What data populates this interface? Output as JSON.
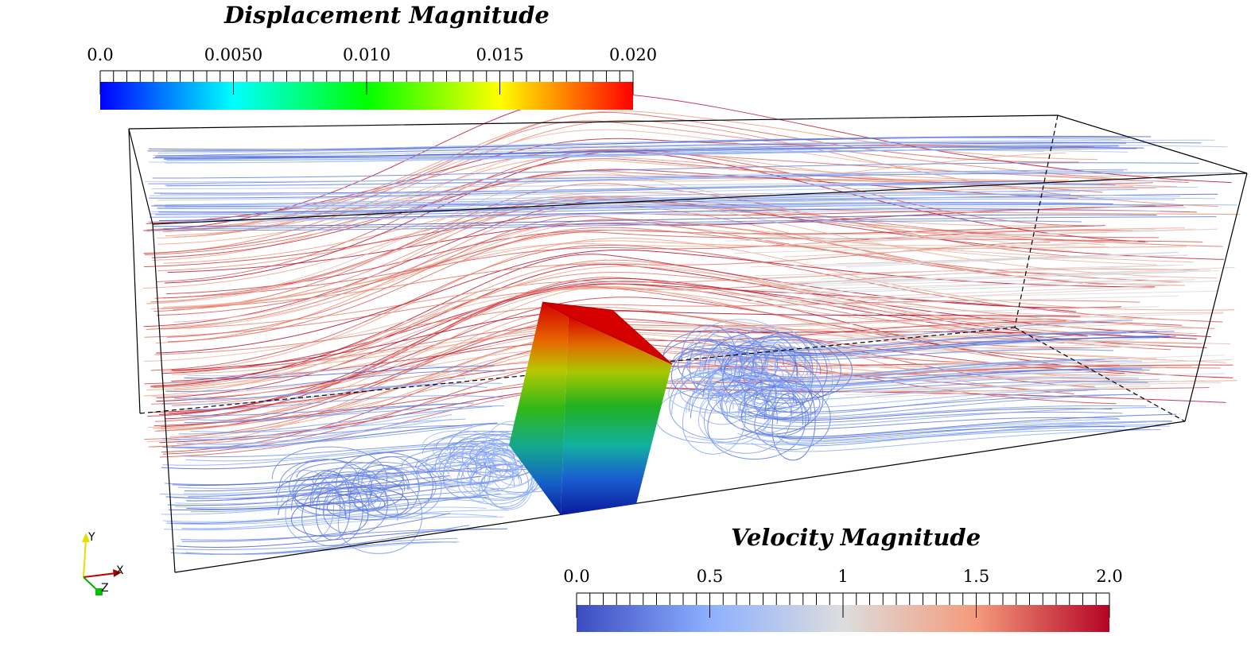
{
  "displacement_bar": {
    "title": "Displacement Magnitude",
    "range": [
      0.0,
      0.02
    ],
    "ticks": [
      {
        "value": 0.0,
        "label": "0.0"
      },
      {
        "value": 0.005,
        "label": "0.0050"
      },
      {
        "value": 0.01,
        "label": "0.010"
      },
      {
        "value": 0.015,
        "label": "0.015"
      },
      {
        "value": 0.02,
        "label": "0.020"
      }
    ],
    "colormap": "rainbow",
    "colors": [
      "#0000ff",
      "#00ffff",
      "#00ff00",
      "#ffff00",
      "#ff0000"
    ]
  },
  "velocity_bar": {
    "title": "Velocity Magnitude",
    "range": [
      0.0,
      2.0
    ],
    "ticks": [
      {
        "value": 0.0,
        "label": "0.0"
      },
      {
        "value": 0.5,
        "label": "0.5"
      },
      {
        "value": 1.0,
        "label": "1"
      },
      {
        "value": 1.5,
        "label": "1.5"
      },
      {
        "value": 2.0,
        "label": "2.0"
      }
    ],
    "colormap": "cool-to-warm",
    "colors": [
      "#3b4cc0",
      "#8db0fe",
      "#dddddd",
      "#f49a7b",
      "#b40426"
    ]
  },
  "axes": {
    "x": "X",
    "y": "Y",
    "z": "Z"
  },
  "axis_colors": {
    "x": "#c00000",
    "y": "#e0e000",
    "z": "#00b000"
  }
}
